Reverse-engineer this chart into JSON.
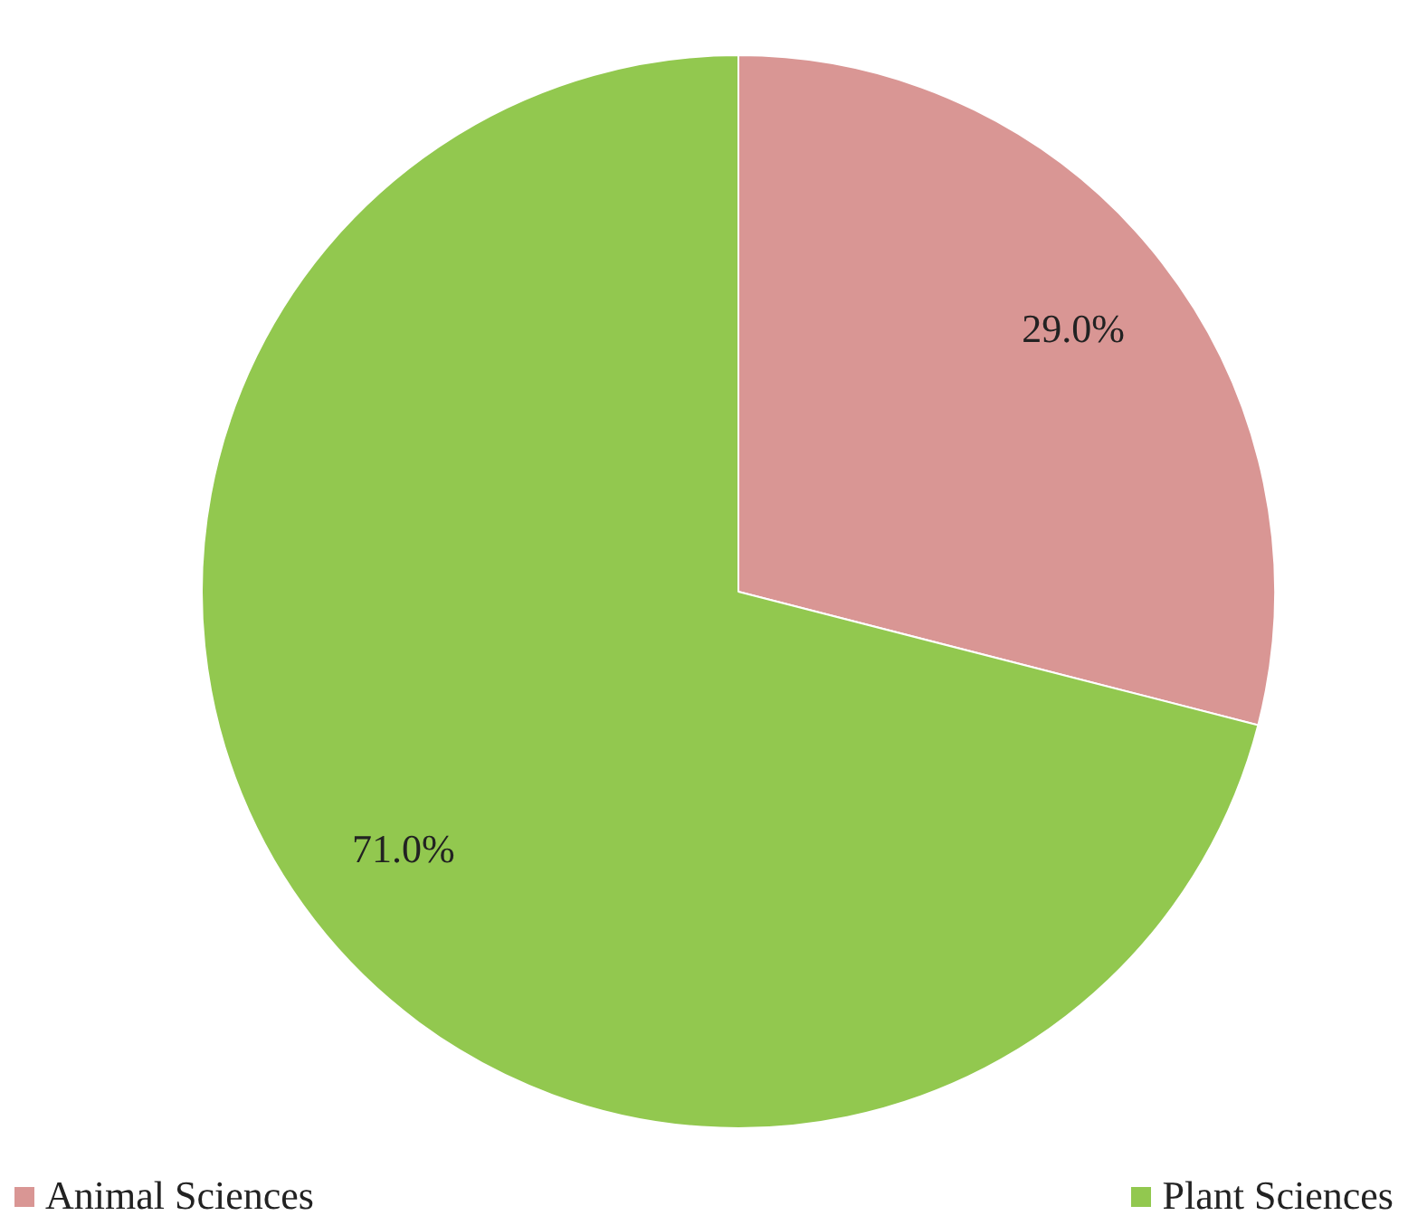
{
  "chart_data": {
    "type": "pie",
    "categories": [
      "Animal Sciences",
      "Plant Sciences"
    ],
    "values": [
      29.0,
      71.0
    ],
    "colors": [
      "#d99694",
      "#92c84f"
    ],
    "value_labels": [
      "29.0%",
      "71.0%"
    ],
    "legend": "bottom"
  }
}
